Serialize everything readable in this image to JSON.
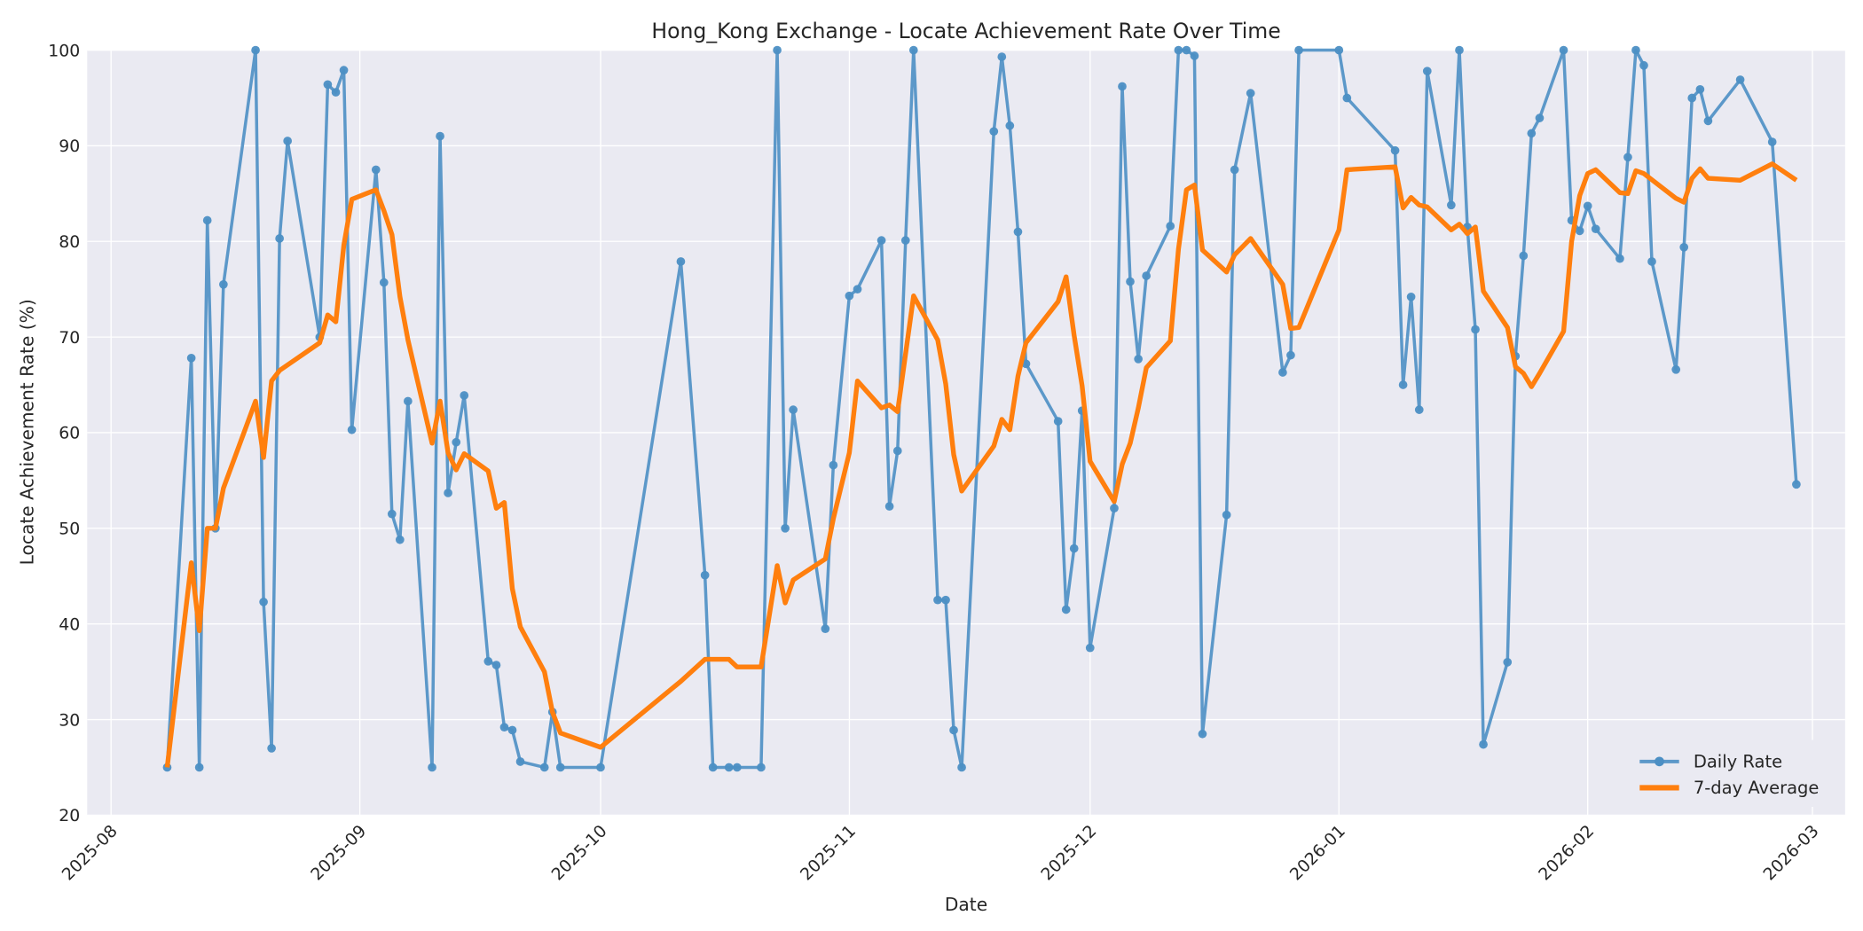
{
  "chart_data": {
    "type": "line",
    "title": "Hong_Kong Exchange - Locate Achievement Rate Over Time",
    "xlabel": "Date",
    "ylabel": "Locate Achievement Rate (%)",
    "ylim": [
      20,
      100
    ],
    "yticks": [
      20,
      30,
      40,
      50,
      60,
      70,
      80,
      90,
      100
    ],
    "xticks": [
      "2025-08",
      "2025-09",
      "2025-10",
      "2025-11",
      "2025-12",
      "2026-01",
      "2026-02",
      "2026-03"
    ],
    "xlim": [
      "2025-07-28",
      "2026-03-05"
    ],
    "grid": true,
    "legend_position": "lower right",
    "colors": {
      "daily": "#4c8fc4",
      "avg": "#ff7f0e",
      "plot_bg": "#eaeaf2",
      "grid": "#ffffff"
    },
    "series": [
      {
        "name": "Daily Rate",
        "style": "line-with-markers",
        "points": [
          [
            "2025-08-08",
            25.0
          ],
          [
            "2025-08-11",
            67.8
          ],
          [
            "2025-08-12",
            25.0
          ],
          [
            "2025-08-13",
            82.2
          ],
          [
            "2025-08-14",
            50.0
          ],
          [
            "2025-08-15",
            75.5
          ],
          [
            "2025-08-19",
            100.0
          ],
          [
            "2025-08-20",
            42.3
          ],
          [
            "2025-08-21",
            27.0
          ],
          [
            "2025-08-22",
            80.3
          ],
          [
            "2025-08-23",
            90.5
          ],
          [
            "2025-08-27",
            70.0
          ],
          [
            "2025-08-28",
            96.4
          ],
          [
            "2025-08-29",
            95.6
          ],
          [
            "2025-08-30",
            97.9
          ],
          [
            "2025-08-31",
            60.3
          ],
          [
            "2025-09-03",
            87.5
          ],
          [
            "2025-09-04",
            75.7
          ],
          [
            "2025-09-05",
            51.5
          ],
          [
            "2025-09-06",
            48.8
          ],
          [
            "2025-09-07",
            63.3
          ],
          [
            "2025-09-10",
            25.0
          ],
          [
            "2025-09-11",
            91.0
          ],
          [
            "2025-09-12",
            53.7
          ],
          [
            "2025-09-13",
            59.0
          ],
          [
            "2025-09-14",
            63.9
          ],
          [
            "2025-09-17",
            36.1
          ],
          [
            "2025-09-18",
            35.7
          ],
          [
            "2025-09-19",
            29.2
          ],
          [
            "2025-09-20",
            28.9
          ],
          [
            "2025-09-21",
            25.6
          ],
          [
            "2025-09-24",
            25.0
          ],
          [
            "2025-09-25",
            30.8
          ],
          [
            "2025-09-26",
            25.0
          ],
          [
            "2025-10-01",
            25.0
          ],
          [
            "2025-10-11",
            77.9
          ],
          [
            "2025-10-14",
            45.1
          ],
          [
            "2025-10-15",
            25.0
          ],
          [
            "2025-10-17",
            25.0
          ],
          [
            "2025-10-18",
            25.0
          ],
          [
            "2025-10-21",
            25.0
          ],
          [
            "2025-10-23",
            100.0
          ],
          [
            "2025-10-24",
            50.0
          ],
          [
            "2025-10-25",
            62.4
          ],
          [
            "2025-10-29",
            39.5
          ],
          [
            "2025-10-30",
            56.6
          ],
          [
            "2025-11-01",
            74.3
          ],
          [
            "2025-11-02",
            75.0
          ],
          [
            "2025-11-05",
            80.1
          ],
          [
            "2025-11-06",
            52.3
          ],
          [
            "2025-11-07",
            58.1
          ],
          [
            "2025-11-08",
            80.1
          ],
          [
            "2025-11-09",
            100.0
          ],
          [
            "2025-11-12",
            42.5
          ],
          [
            "2025-11-13",
            42.5
          ],
          [
            "2025-11-14",
            28.9
          ],
          [
            "2025-11-15",
            25.0
          ],
          [
            "2025-11-19",
            91.5
          ],
          [
            "2025-11-20",
            99.3
          ],
          [
            "2025-11-21",
            92.1
          ],
          [
            "2025-11-22",
            81.0
          ],
          [
            "2025-11-23",
            67.2
          ],
          [
            "2025-11-27",
            61.2
          ],
          [
            "2025-11-28",
            41.5
          ],
          [
            "2025-11-29",
            47.9
          ],
          [
            "2025-11-30",
            62.3
          ],
          [
            "2025-12-01",
            37.5
          ],
          [
            "2025-12-04",
            52.1
          ],
          [
            "2025-12-05",
            96.2
          ],
          [
            "2025-12-06",
            75.8
          ],
          [
            "2025-12-07",
            67.7
          ],
          [
            "2025-12-08",
            76.4
          ],
          [
            "2025-12-11",
            81.6
          ],
          [
            "2025-12-12",
            100.0
          ],
          [
            "2025-12-13",
            100.0
          ],
          [
            "2025-12-14",
            99.4
          ],
          [
            "2025-12-15",
            28.5
          ],
          [
            "2025-12-18",
            51.4
          ],
          [
            "2025-12-19",
            87.5
          ],
          [
            "2025-12-21",
            95.5
          ],
          [
            "2025-12-25",
            66.3
          ],
          [
            "2025-12-26",
            68.1
          ],
          [
            "2025-12-27",
            100.0
          ],
          [
            "2026-01-01",
            100.0
          ],
          [
            "2026-01-02",
            95.0
          ],
          [
            "2026-01-08",
            89.5
          ],
          [
            "2026-01-09",
            65.0
          ],
          [
            "2026-01-10",
            74.2
          ],
          [
            "2026-01-11",
            62.4
          ],
          [
            "2026-01-12",
            97.8
          ],
          [
            "2026-01-15",
            83.8
          ],
          [
            "2026-01-16",
            100.0
          ],
          [
            "2026-01-17",
            81.5
          ],
          [
            "2026-01-18",
            70.8
          ],
          [
            "2026-01-19",
            27.4
          ],
          [
            "2026-01-22",
            36.0
          ],
          [
            "2026-01-23",
            68.0
          ],
          [
            "2026-01-24",
            78.5
          ],
          [
            "2026-01-25",
            91.3
          ],
          [
            "2026-01-26",
            92.9
          ],
          [
            "2026-01-29",
            100.0
          ],
          [
            "2026-01-30",
            82.2
          ],
          [
            "2026-01-31",
            81.1
          ],
          [
            "2026-02-01",
            83.7
          ],
          [
            "2026-02-02",
            81.3
          ],
          [
            "2026-02-05",
            78.2
          ],
          [
            "2026-02-06",
            88.8
          ],
          [
            "2026-02-07",
            100.0
          ],
          [
            "2026-02-08",
            98.4
          ],
          [
            "2026-02-09",
            77.9
          ],
          [
            "2026-02-12",
            66.6
          ],
          [
            "2026-02-13",
            79.4
          ],
          [
            "2026-02-14",
            95.0
          ],
          [
            "2026-02-15",
            95.9
          ],
          [
            "2026-02-16",
            92.6
          ],
          [
            "2026-02-20",
            96.9
          ],
          [
            "2026-02-24",
            90.4
          ],
          [
            "2026-02-27",
            54.6
          ]
        ]
      },
      {
        "name": "7-day Average",
        "style": "line",
        "points": [
          [
            "2025-08-08",
            25.0
          ],
          [
            "2025-08-11",
            46.4
          ],
          [
            "2025-08-12",
            39.3
          ],
          [
            "2025-08-13",
            50.0
          ],
          [
            "2025-08-14",
            50.0
          ],
          [
            "2025-08-15",
            54.2
          ],
          [
            "2025-08-19",
            63.3
          ],
          [
            "2025-08-20",
            57.4
          ],
          [
            "2025-08-21",
            65.4
          ],
          [
            "2025-08-22",
            66.5
          ],
          [
            "2025-08-27",
            69.4
          ],
          [
            "2025-08-28",
            72.3
          ],
          [
            "2025-08-29",
            71.6
          ],
          [
            "2025-08-30",
            79.6
          ],
          [
            "2025-08-31",
            84.4
          ],
          [
            "2025-09-03",
            85.4
          ],
          [
            "2025-09-04",
            83.2
          ],
          [
            "2025-09-05",
            80.7
          ],
          [
            "2025-09-06",
            74.2
          ],
          [
            "2025-09-07",
            69.7
          ],
          [
            "2025-09-10",
            58.9
          ],
          [
            "2025-09-11",
            63.3
          ],
          [
            "2025-09-12",
            57.9
          ],
          [
            "2025-09-13",
            56.1
          ],
          [
            "2025-09-14",
            57.8
          ],
          [
            "2025-09-17",
            56.0
          ],
          [
            "2025-09-18",
            52.1
          ],
          [
            "2025-09-19",
            52.7
          ],
          [
            "2025-09-20",
            43.7
          ],
          [
            "2025-09-21",
            39.7
          ],
          [
            "2025-09-24",
            35.0
          ],
          [
            "2025-09-25",
            30.8
          ],
          [
            "2025-09-26",
            28.6
          ],
          [
            "2025-10-01",
            27.1
          ],
          [
            "2025-10-11",
            34.0
          ],
          [
            "2025-10-14",
            36.3
          ],
          [
            "2025-10-17",
            36.3
          ],
          [
            "2025-10-18",
            35.5
          ],
          [
            "2025-10-21",
            35.5
          ],
          [
            "2025-10-23",
            46.1
          ],
          [
            "2025-10-24",
            42.2
          ],
          [
            "2025-10-25",
            44.6
          ],
          [
            "2025-10-29",
            46.8
          ],
          [
            "2025-10-30",
            51.0
          ],
          [
            "2025-11-01",
            57.9
          ],
          [
            "2025-11-02",
            65.4
          ],
          [
            "2025-11-05",
            62.6
          ],
          [
            "2025-11-06",
            62.9
          ],
          [
            "2025-11-07",
            62.2
          ],
          [
            "2025-11-09",
            74.3
          ],
          [
            "2025-11-12",
            69.7
          ],
          [
            "2025-11-13",
            65.1
          ],
          [
            "2025-11-14",
            57.7
          ],
          [
            "2025-11-15",
            53.9
          ],
          [
            "2025-11-19",
            58.6
          ],
          [
            "2025-11-20",
            61.4
          ],
          [
            "2025-11-21",
            60.3
          ],
          [
            "2025-11-22",
            65.9
          ],
          [
            "2025-11-23",
            69.4
          ],
          [
            "2025-11-27",
            73.7
          ],
          [
            "2025-11-28",
            76.3
          ],
          [
            "2025-11-29",
            70.2
          ],
          [
            "2025-11-30",
            64.9
          ],
          [
            "2025-12-01",
            57.0
          ],
          [
            "2025-12-04",
            52.8
          ],
          [
            "2025-12-05",
            56.7
          ],
          [
            "2025-12-06",
            58.9
          ],
          [
            "2025-12-07",
            62.6
          ],
          [
            "2025-12-08",
            66.8
          ],
          [
            "2025-12-11",
            69.6
          ],
          [
            "2025-12-12",
            79.2
          ],
          [
            "2025-12-13",
            85.4
          ],
          [
            "2025-12-14",
            85.9
          ],
          [
            "2025-12-15",
            79.1
          ],
          [
            "2025-12-18",
            76.8
          ],
          [
            "2025-12-19",
            78.6
          ],
          [
            "2025-12-21",
            80.3
          ],
          [
            "2025-12-25",
            75.5
          ],
          [
            "2025-12-26",
            70.9
          ],
          [
            "2025-12-27",
            71.0
          ],
          [
            "2026-01-01",
            81.2
          ],
          [
            "2026-01-02",
            87.5
          ],
          [
            "2026-01-08",
            87.8
          ],
          [
            "2026-01-09",
            83.5
          ],
          [
            "2026-01-10",
            84.6
          ],
          [
            "2026-01-11",
            83.8
          ],
          [
            "2026-01-12",
            83.6
          ],
          [
            "2026-01-15",
            81.2
          ],
          [
            "2026-01-16",
            81.8
          ],
          [
            "2026-01-17",
            80.8
          ],
          [
            "2026-01-18",
            81.5
          ],
          [
            "2026-01-19",
            74.8
          ],
          [
            "2026-01-22",
            71.0
          ],
          [
            "2026-01-23",
            66.9
          ],
          [
            "2026-01-24",
            66.2
          ],
          [
            "2026-01-25",
            64.8
          ],
          [
            "2026-01-26",
            66.2
          ],
          [
            "2026-01-29",
            70.6
          ],
          [
            "2026-01-30",
            80.0
          ],
          [
            "2026-01-31",
            84.8
          ],
          [
            "2026-02-01",
            87.1
          ],
          [
            "2026-02-02",
            87.5
          ],
          [
            "2026-02-05",
            85.1
          ],
          [
            "2026-02-06",
            85.0
          ],
          [
            "2026-02-07",
            87.4
          ],
          [
            "2026-02-08",
            87.1
          ],
          [
            "2026-02-12",
            84.5
          ],
          [
            "2026-02-13",
            84.1
          ],
          [
            "2026-02-14",
            86.6
          ],
          [
            "2026-02-15",
            87.6
          ],
          [
            "2026-02-16",
            86.6
          ],
          [
            "2026-02-20",
            86.4
          ],
          [
            "2026-02-24",
            88.1
          ],
          [
            "2026-02-27",
            86.4
          ]
        ]
      }
    ]
  },
  "legend": {
    "items": [
      {
        "label": "Daily Rate"
      },
      {
        "label": "7-day Average"
      }
    ]
  }
}
